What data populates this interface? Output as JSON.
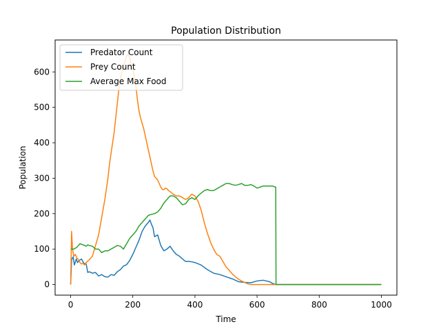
{
  "chart_data": {
    "type": "line",
    "title": "Population Distribution",
    "xlabel": "Time",
    "ylabel": "Population",
    "xlim": [
      -50,
      1050
    ],
    "ylim": [
      -30,
      690
    ],
    "xticks": [
      0,
      200,
      400,
      600,
      800,
      1000
    ],
    "yticks": [
      0,
      100,
      200,
      300,
      400,
      500,
      600
    ],
    "grid": false,
    "legend_position": "top-left",
    "series": [
      {
        "name": "Predator Count",
        "color": "#1f77b4",
        "x": [
          0,
          3,
          8,
          12,
          18,
          22,
          28,
          35,
          42,
          50,
          55,
          60,
          70,
          80,
          90,
          100,
          110,
          120,
          130,
          140,
          150,
          160,
          170,
          180,
          190,
          200,
          210,
          220,
          230,
          240,
          250,
          255,
          260,
          265,
          270,
          280,
          290,
          300,
          310,
          320,
          330,
          340,
          350,
          360,
          370,
          380,
          390,
          400,
          420,
          440,
          460,
          480,
          500,
          520,
          540,
          560,
          580,
          600,
          620,
          640,
          650,
          660,
          700,
          800,
          900,
          1000
        ],
        "y": [
          0,
          70,
          78,
          55,
          72,
          62,
          68,
          72,
          60,
          58,
          34,
          36,
          32,
          34,
          24,
          28,
          22,
          21,
          28,
          26,
          36,
          42,
          52,
          56,
          68,
          85,
          105,
          125,
          150,
          165,
          175,
          182,
          170,
          160,
          135,
          140,
          110,
          95,
          100,
          108,
          95,
          85,
          80,
          72,
          65,
          65,
          64,
          62,
          55,
          42,
          32,
          28,
          22,
          16,
          8,
          6,
          5,
          10,
          12,
          8,
          3,
          0,
          0,
          0,
          0,
          0
        ]
      },
      {
        "name": "Prey Count",
        "color": "#ff7f0e",
        "x": [
          0,
          3,
          6,
          10,
          15,
          20,
          25,
          30,
          35,
          40,
          45,
          50,
          60,
          70,
          80,
          90,
          95,
          100,
          105,
          110,
          115,
          120,
          125,
          130,
          135,
          140,
          145,
          150,
          155,
          160,
          165,
          170,
          175,
          180,
          185,
          190,
          195,
          200,
          205,
          210,
          215,
          220,
          225,
          230,
          235,
          240,
          245,
          250,
          255,
          260,
          265,
          270,
          275,
          280,
          285,
          290,
          295,
          300,
          305,
          310,
          315,
          320,
          330,
          340,
          350,
          360,
          370,
          380,
          390,
          400,
          410,
          420,
          430,
          440,
          450,
          460,
          470,
          480,
          490,
          500,
          510,
          520,
          530,
          540,
          550,
          560,
          570,
          580,
          600,
          620,
          640,
          660,
          700,
          800,
          900,
          1000
        ],
        "y": [
          0,
          150,
          100,
          80,
          85,
          75,
          70,
          62,
          58,
          60,
          55,
          62,
          70,
          80,
          110,
          140,
          165,
          190,
          215,
          240,
          270,
          300,
          340,
          370,
          400,
          430,
          470,
          510,
          550,
          580,
          600,
          615,
          630,
          645,
          650,
          640,
          620,
          605,
          590,
          560,
          520,
          490,
          470,
          455,
          440,
          420,
          400,
          380,
          360,
          340,
          320,
          305,
          300,
          295,
          285,
          275,
          268,
          268,
          272,
          270,
          265,
          262,
          255,
          250,
          250,
          245,
          240,
          245,
          255,
          250,
          235,
          210,
          175,
          145,
          120,
          100,
          85,
          80,
          65,
          50,
          40,
          30,
          22,
          15,
          10,
          6,
          2,
          0,
          0,
          0,
          0,
          0,
          0,
          0,
          0,
          0
        ]
      },
      {
        "name": "Average Max Food",
        "color": "#2ca02c",
        "x": [
          0,
          3,
          10,
          20,
          25,
          30,
          40,
          50,
          55,
          60,
          70,
          80,
          90,
          95,
          100,
          110,
          120,
          130,
          140,
          150,
          160,
          170,
          180,
          190,
          200,
          210,
          220,
          230,
          240,
          250,
          260,
          270,
          280,
          290,
          300,
          310,
          320,
          330,
          340,
          350,
          360,
          370,
          380,
          390,
          400,
          410,
          420,
          430,
          440,
          450,
          460,
          470,
          480,
          490,
          500,
          510,
          520,
          530,
          540,
          550,
          560,
          570,
          580,
          590,
          600,
          610,
          620,
          630,
          640,
          650,
          658,
          660,
          661,
          700,
          800,
          900,
          1000
        ],
        "y": [
          100,
          100,
          100,
          105,
          110,
          115,
          112,
          108,
          112,
          110,
          108,
          100,
          100,
          95,
          90,
          95,
          95,
          100,
          105,
          110,
          108,
          100,
          115,
          130,
          140,
          150,
          165,
          175,
          185,
          195,
          198,
          200,
          205,
          215,
          230,
          240,
          250,
          250,
          245,
          235,
          225,
          228,
          240,
          245,
          240,
          250,
          258,
          265,
          268,
          265,
          265,
          270,
          275,
          280,
          285,
          285,
          282,
          280,
          282,
          285,
          280,
          280,
          282,
          278,
          272,
          275,
          278,
          278,
          278,
          278,
          275,
          275,
          0,
          0,
          0,
          0,
          0
        ]
      }
    ]
  }
}
